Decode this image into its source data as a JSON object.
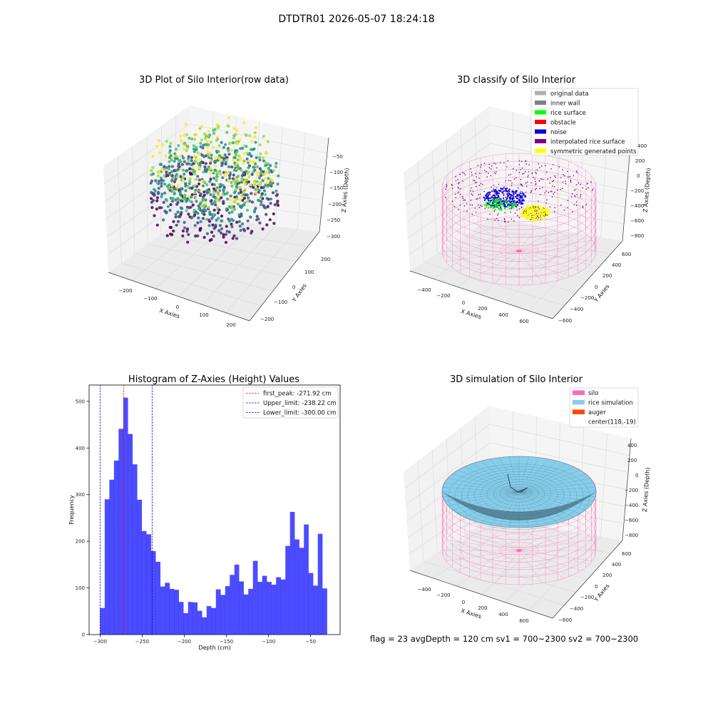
{
  "suptitle": "DTDTR01 2026-05-07 18:24:18",
  "panels": {
    "raw": {
      "title": "3D Plot of Silo Interior(row data)",
      "xlabel": "X Axies",
      "ylabel": "Y Axies",
      "zlabel": "Z Axies (Depth)",
      "xticks": [
        "−200",
        "−100",
        "0",
        "100",
        "200"
      ],
      "yticks": [
        "200",
        "100",
        "0",
        "−100",
        "−200"
      ],
      "zticks": [
        "−50",
        "−100",
        "−150",
        "−200",
        "−250",
        "−300"
      ]
    },
    "classify": {
      "title": "3D classify of Silo Interior",
      "xlabel": "X Axies",
      "ylabel": "Y Axies",
      "zlabel": "Z Axies (Depth)",
      "xticks": [
        "−400",
        "−200",
        "0",
        "200",
        "400",
        "600"
      ],
      "yticks": [
        "600",
        "400",
        "200",
        "0",
        "−200",
        "−400",
        "−600"
      ],
      "zticks": [
        "400",
        "200",
        "0",
        "−200",
        "−400",
        "−600",
        "−800"
      ],
      "legend": [
        {
          "label": "original data",
          "color": "#b0b0b0"
        },
        {
          "label": "inner wall",
          "color": "#808080"
        },
        {
          "label": "rice surface",
          "color": "#00ff00"
        },
        {
          "label": "obstacle",
          "color": "#ff0000"
        },
        {
          "label": "noise",
          "color": "#0000dd"
        },
        {
          "label": "interpolated rice surface",
          "color": "#800080"
        },
        {
          "label": "symmetric generated points",
          "color": "#ffff00"
        }
      ]
    },
    "simulation": {
      "title": "3D simulation of Silo Interior",
      "xlabel": "X Axies",
      "ylabel": "Y Axies",
      "zlabel": "Z Axies (Depth)",
      "xticks": [
        "−400",
        "−200",
        "0",
        "200",
        "400",
        "600"
      ],
      "yticks": [
        "600",
        "400",
        "200",
        "0",
        "−200",
        "−400",
        "−600"
      ],
      "zticks": [
        "400",
        "200",
        "0",
        "−200",
        "−400",
        "−600",
        "−800"
      ],
      "legend": [
        {
          "label": "silo",
          "color": "#ff69b4"
        },
        {
          "label": "rice simulation",
          "color": "#87ceeb"
        },
        {
          "label": "auger",
          "color": "#ff4500"
        },
        {
          "label": "center(118,-19)",
          "color": ""
        }
      ]
    }
  },
  "status_line": "flag = 23  avgDepth = 120 cm  sv1 = 700~2300  sv2 = 700~2300",
  "chart_data": [
    {
      "type": "histogram",
      "title": "Histogram of Z-Axies (Height) Values",
      "xlabel": "Depth (cm)",
      "ylabel": "Frequency",
      "bar_color": "#0000ff",
      "xlim": [
        -313,
        -15
      ],
      "ylim": [
        0,
        535
      ],
      "bins": {
        "start": -300,
        "width": 5.5
      },
      "xticks": [
        -300,
        -250,
        -200,
        -150,
        -100,
        -50
      ],
      "xticklabels": [
        "−300",
        "−250",
        "−200",
        "−150",
        "−100",
        "−50"
      ],
      "yticks": [
        0,
        100,
        200,
        300,
        400,
        500
      ],
      "counts": [
        57,
        290,
        332,
        373,
        441,
        508,
        430,
        365,
        289,
        222,
        215,
        179,
        156,
        103,
        111,
        98,
        96,
        70,
        46,
        70,
        69,
        51,
        37,
        61,
        57,
        97,
        85,
        104,
        128,
        150,
        114,
        86,
        98,
        158,
        113,
        126,
        113,
        107,
        123,
        118,
        190,
        263,
        204,
        186,
        236,
        132,
        105,
        216,
        99
      ],
      "vlines": [
        {
          "label": "first_peak: -271.92 cm",
          "x": -271.92,
          "color": "#ff0000"
        },
        {
          "label": "Upper_limit: -238.22 cm",
          "x": -238.22,
          "color": "#0000bb"
        },
        {
          "label": "Lower_limit: -300.00 cm",
          "x": -300.0,
          "color": "#0000bb"
        }
      ],
      "legend_position": "upper-right"
    }
  ]
}
